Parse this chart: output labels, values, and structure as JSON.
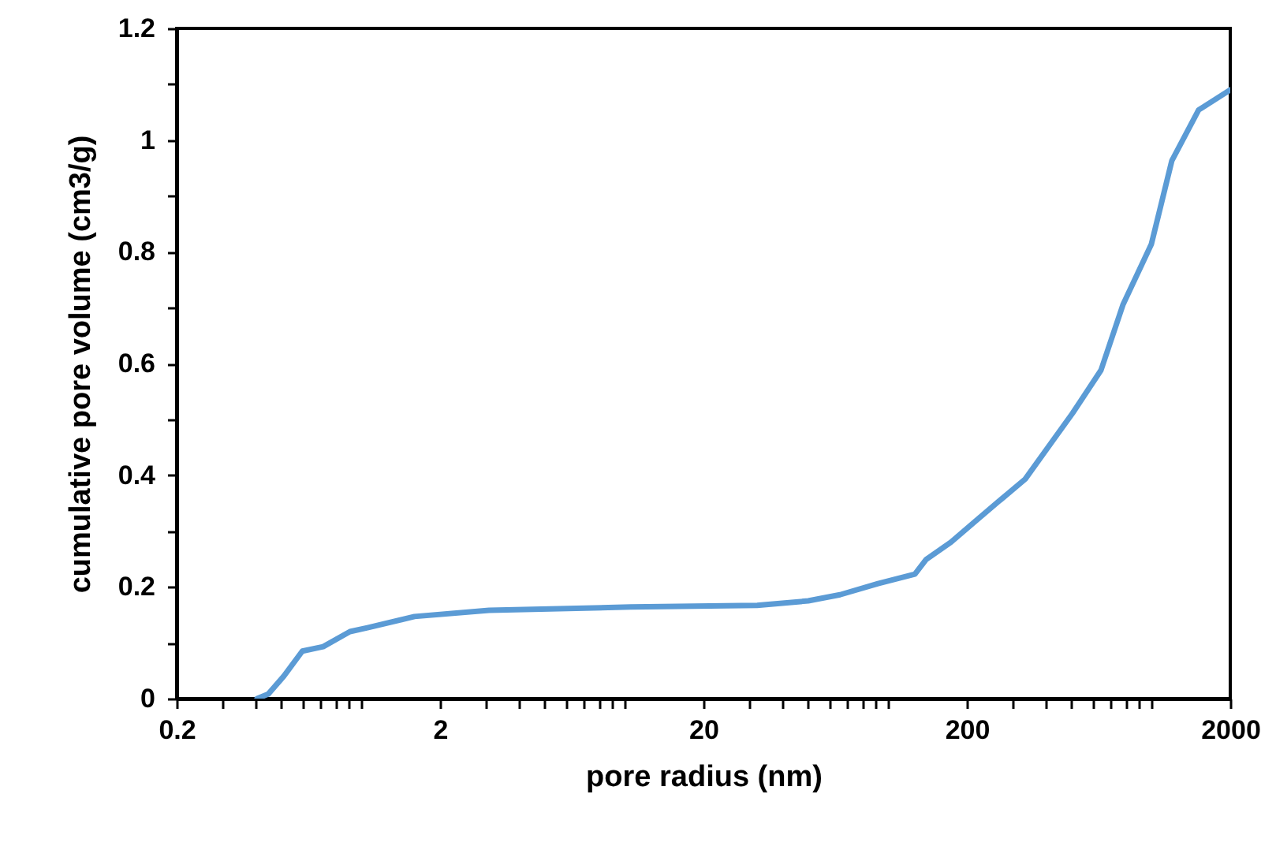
{
  "chart_data": {
    "type": "line",
    "xlabel": "pore radius (nm)",
    "ylabel": "cumulative pore volume (cm3/g)",
    "log": "x",
    "grid": false,
    "marker": "none",
    "line_style": "solid",
    "xlim": [
      0.2,
      2000
    ],
    "ylim": [
      0,
      1.2
    ],
    "xticks": [
      0.2,
      {
        "value": 0.3,
        "label": null
      },
      {
        "value": 0.4,
        "label": null
      },
      {
        "value": 0.5,
        "label": null
      },
      {
        "value": 0.6,
        "label": null
      },
      {
        "value": 0.7,
        "label": null
      },
      {
        "value": 0.8,
        "label": null
      },
      {
        "value": 0.9,
        "label": null
      },
      {
        "value": 1,
        "label": null
      },
      2,
      {
        "value": 3,
        "label": null
      },
      {
        "value": 4,
        "label": null
      },
      {
        "value": 5,
        "label": null
      },
      {
        "value": 6,
        "label": null
      },
      {
        "value": 7,
        "label": null
      },
      {
        "value": 8,
        "label": null
      },
      {
        "value": 9,
        "label": null
      },
      {
        "value": 10,
        "label": null
      },
      20,
      {
        "value": 30,
        "label": null
      },
      {
        "value": 40,
        "label": null
      },
      {
        "value": 50,
        "label": null
      },
      {
        "value": 60,
        "label": null
      },
      {
        "value": 70,
        "label": null
      },
      {
        "value": 80,
        "label": null
      },
      {
        "value": 90,
        "label": null
      },
      {
        "value": 100,
        "label": null
      },
      200,
      {
        "value": 300,
        "label": null
      },
      {
        "value": 400,
        "label": null
      },
      {
        "value": 500,
        "label": null
      },
      {
        "value": 600,
        "label": null
      },
      {
        "value": 700,
        "label": null
      },
      {
        "value": 800,
        "label": null
      },
      {
        "value": 900,
        "label": null
      },
      {
        "value": 1000,
        "label": null
      },
      2000
    ],
    "yticks": [
      0,
      {
        "value": 0.1,
        "label": null
      },
      0.2,
      {
        "value": 0.3,
        "label": null
      },
      0.4,
      {
        "value": 0.5,
        "label": null
      },
      0.6,
      {
        "value": 0.7,
        "label": null
      },
      0.8,
      {
        "value": 0.9,
        "label": null
      },
      1,
      {
        "value": 1.1,
        "label": null
      },
      1.2
    ],
    "series": [
      {
        "color": "#5b9bd5",
        "x": [
          0.404,
          0.445,
          0.51,
          0.6,
          0.72,
          0.91,
          1.06,
          1.6,
          3.07,
          10.6,
          32,
          50,
          66,
          92,
          127,
          140,
          174,
          211,
          264,
          333,
          421,
          504,
          646,
          784,
          1004,
          1200,
          1517,
          2000
        ],
        "values": [
          0,
          0.008,
          0.04,
          0.085,
          0.093,
          0.12,
          0.127,
          0.147,
          0.158,
          0.164,
          0.167,
          0.175,
          0.186,
          0.206,
          0.223,
          0.249,
          0.28,
          0.314,
          0.353,
          0.393,
          0.46,
          0.511,
          0.588,
          0.706,
          0.814,
          0.963,
          1.054,
          1.09
        ]
      }
    ]
  }
}
